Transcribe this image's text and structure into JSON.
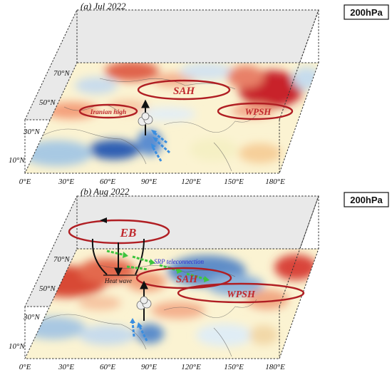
{
  "panels": [
    {
      "title": "(a) Jul 2022",
      "level": "200hPa",
      "lat_ticks": [
        "70°N",
        "50°N",
        "30°N",
        "10°N"
      ],
      "lon_ticks": [
        "0°E",
        "30°E",
        "60°E",
        "90°E",
        "120°E",
        "150°E",
        "180°E"
      ],
      "systems": {
        "sah": "SAH",
        "wpsh": "WPSH",
        "iranian_high": "Iranian high"
      }
    },
    {
      "title": "(b) Aug 2022",
      "level": "200hPa",
      "lat_ticks": [
        "70°N",
        "50°N",
        "30°N",
        "10°N"
      ],
      "lon_ticks": [
        "0°E",
        "30°E",
        "60°E",
        "90°E",
        "120°E",
        "150°E",
        "180°E"
      ],
      "systems": {
        "eb": "EB",
        "sah": "SAH",
        "wpsh": "WPSH",
        "srp": "SRP teleconnection",
        "heat_wave": "Heat wave"
      }
    }
  ],
  "colors": {
    "anticyclone_ellipse": "#b01e23",
    "label_red": "#c0282d",
    "srp_blue": "#2a2ad0",
    "wave_arrow_green": "#3ec43e",
    "flow_arrow_blue": "#3a8ee0",
    "warm_anomaly": "#d9453b",
    "cool_anomaly": "#6fa3d1"
  }
}
